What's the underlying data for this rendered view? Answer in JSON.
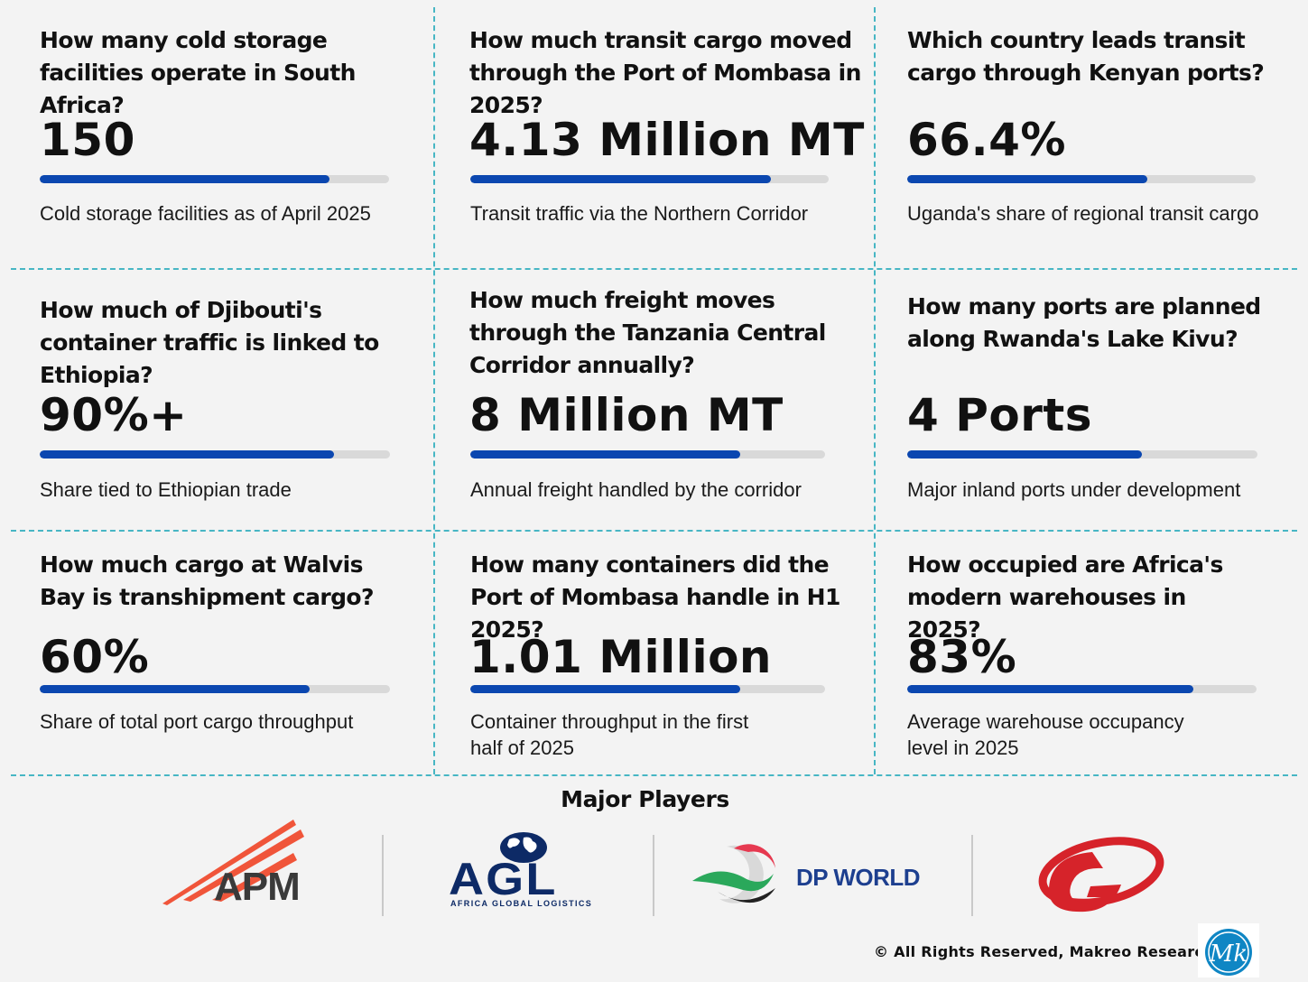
{
  "cards": [
    {
      "question": "How many cold storage facilities operate in South Africa?",
      "value": "150",
      "description": "Cold storage facilities as of April 2025",
      "progress": 0.83
    },
    {
      "question": "How much transit cargo moved through the Port of Mombasa in 2025?",
      "value": "4.13 Million MT",
      "description": "Transit traffic via the Northern Corridor",
      "progress": 0.84
    },
    {
      "question": "Which country leads transit cargo through Kenyan ports?",
      "value": "66.4%",
      "description": "Uganda's share of regional transit cargo",
      "progress": 0.69
    },
    {
      "question": "How much of Djibouti's container traffic is linked to Ethiopia?",
      "value": "90%+",
      "description": "Share tied to Ethiopian trade",
      "progress": 0.84
    },
    {
      "question": "How much freight moves through the Tanzania Central Corridor annually?",
      "value": "8 Million MT",
      "description": "Annual freight handled by the corridor",
      "progress": 0.76
    },
    {
      "question": "How many ports are planned along Rwanda's Lake Kivu?",
      "value": "4 Ports",
      "description": "Major inland ports under development",
      "progress": 0.67
    },
    {
      "question": "How much cargo at Walvis Bay is transhipment cargo?",
      "value": "60%",
      "description": "Share of total port cargo throughput",
      "progress": 0.77
    },
    {
      "question": "How many containers did the Port of Mombasa handle in H1 2025?",
      "value": "1.01 Million",
      "description": "Container throughput in the first half of 2025",
      "progress": 0.76
    },
    {
      "question": "How occupied are Africa's modern warehouses in 2025?",
      "value": "83%",
      "description": "Average warehouse occupancy level in 2025",
      "progress": 0.82
    }
  ],
  "players": {
    "title": "Major Players",
    "logos": {
      "apm": "APM",
      "agl": "AGL",
      "agl_sub": "AFRICA GLOBAL LOGISTICS",
      "dp": "DP WORLD",
      "g_logo": "G",
      "mk": "MK"
    }
  },
  "footer": {
    "copyright": "© All Rights Reserved, Makreo Research"
  },
  "colors": {
    "bar_fill": "#0b47b0",
    "bar_track": "#d9d9d9",
    "divider": "#47b6c4",
    "apm": "#f0553a",
    "agl": "#0d2a66",
    "dp_text": "#1d3f8f",
    "g_red": "#d6232a",
    "mk": "#0f86c4"
  }
}
